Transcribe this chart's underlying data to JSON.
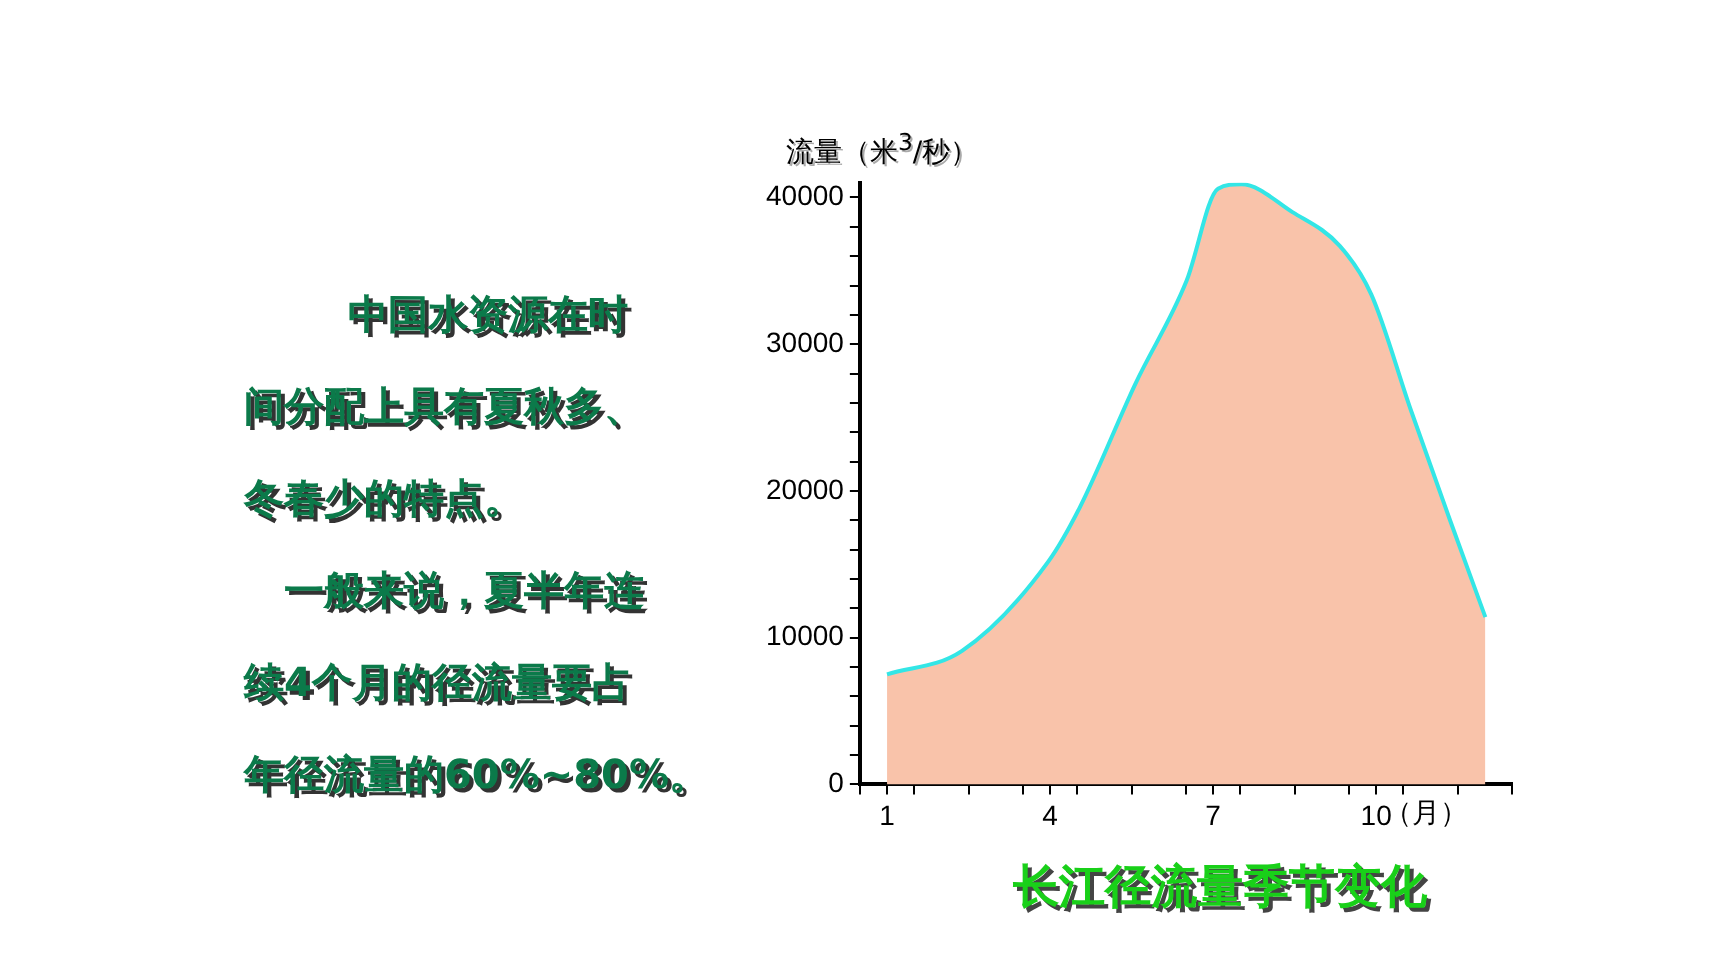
{
  "chart_data": {
    "type": "area",
    "title": "长江径流量季节变化",
    "xlabel": "（月）",
    "ylabel": "流量（米$^{3}$/秒）",
    "annotations": [
      "中国水资源在时",
      "间分配上具有夏秋多、",
      "冬春少的特点。",
      "一般来说，夏半年连",
      "续4个月的径流量要占",
      "年径流量的60%~80%。"
    ],
    "series": [
      {
        "color": "#f9c3aa",
        "x": [
          1,
          2.38,
          3.97,
          4.55,
          5.57,
          6.51,
          7.09,
          7.52,
          8.46,
          9.33,
          9.91,
          10.64,
          11.36,
          12.01
        ],
        "values": [
          7500,
          9100,
          15200,
          18900,
          27300,
          34300,
          40600,
          40900,
          39000,
          36700,
          33400,
          25500,
          18000,
          11400
        ]
      },
      {
        "type": "line",
        "color": "#33e6e6",
        "x": [
          1,
          2.38,
          3.97,
          4.55,
          5.57,
          6.51,
          7.09,
          7.52,
          8.46,
          9.33,
          9.91,
          10.64,
          11.36,
          12.01
        ],
        "values": [
          7500,
          9100,
          15200,
          18900,
          27300,
          34300,
          40600,
          40900,
          39000,
          36700,
          33400,
          25500,
          18000,
          11400
        ]
      }
    ],
    "xlim": [
      0.5,
      12.5
    ],
    "xticks": [
      {
        "value": 0.5,
        "label": null
      },
      1,
      {
        "value": 1.5,
        "label": null
      },
      {
        "value": 2.5,
        "label": null
      },
      {
        "value": 3.5,
        "label": null
      },
      4,
      {
        "value": 4.5,
        "label": null
      },
      {
        "value": 5.5,
        "label": null
      },
      {
        "value": 6.5,
        "label": null
      },
      7,
      {
        "value": 7.5,
        "label": null
      },
      {
        "value": 8.5,
        "label": null
      },
      {
        "value": 9.5,
        "label": null
      },
      10,
      {
        "value": 10.5,
        "label": null
      },
      {
        "value": 11.5,
        "label": null
      },
      {
        "value": 12.5,
        "label": null
      }
    ],
    "ylim": [
      0,
      41000
    ],
    "yticks": [
      0,
      {
        "value": 2000,
        "label": null
      },
      {
        "value": 4000,
        "label": null
      },
      {
        "value": 6000,
        "label": null
      },
      {
        "value": 8000,
        "label": null
      },
      10000,
      {
        "value": 12000,
        "label": null
      },
      {
        "value": 14000,
        "label": null
      },
      {
        "value": 16000,
        "label": null
      },
      {
        "value": 18000,
        "label": null
      },
      20000,
      {
        "value": 22000,
        "label": null
      },
      {
        "value": 24000,
        "label": null
      },
      {
        "value": 26000,
        "label": null
      },
      {
        "value": 28000,
        "label": null
      },
      30000,
      {
        "value": 32000,
        "label": null
      },
      {
        "value": 34000,
        "label": null
      },
      {
        "value": 36000,
        "label": null
      },
      {
        "value": 38000,
        "label": null
      },
      40000
    ]
  }
}
